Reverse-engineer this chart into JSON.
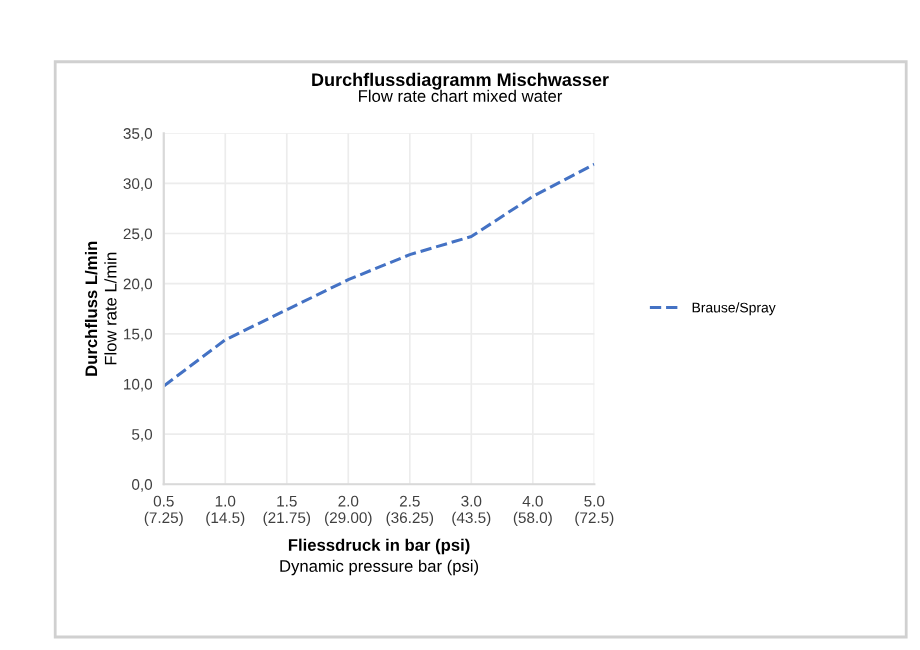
{
  "chart_data": {
    "type": "line",
    "title": "Durchflussdiagramm Mischwasser",
    "subtitle": "Flow rate chart mixed water",
    "xlabel": "Fliessdruck in bar (psi)\nDynamic pressure bar (psi)",
    "ylabel": "Durchfluss L/min\nFlow rate L/min",
    "categories": [
      "0.5\n(7.25)",
      "1.0\n(14.5)",
      "1.5\n(21.75)",
      "2.0\n(29.00)",
      "2.5\n(36.25)",
      "3.0\n(43.5)",
      "4.0\n(58.0)",
      "5.0\n(72.5)"
    ],
    "series": [
      {
        "name": "Brause/Spray",
        "color": "#4472c4",
        "values": [
          9.8,
          14.4,
          17.4,
          20.4,
          22.9,
          24.7,
          28.7,
          31.9
        ]
      }
    ],
    "ylim": [
      0,
      35
    ],
    "yticks": [
      {
        "value": 0,
        "label": "0,0"
      },
      {
        "value": 5,
        "label": "5,0"
      },
      {
        "value": 10,
        "label": "10,0"
      },
      {
        "value": 15,
        "label": "15,0"
      },
      {
        "value": 20,
        "label": "20,0"
      },
      {
        "value": 25,
        "label": "25,0"
      },
      {
        "value": 30,
        "label": "30,0"
      },
      {
        "value": 35,
        "label": "35,0"
      }
    ],
    "grid": true,
    "legend": "right",
    "marker": "none",
    "line_style": "dashed"
  }
}
